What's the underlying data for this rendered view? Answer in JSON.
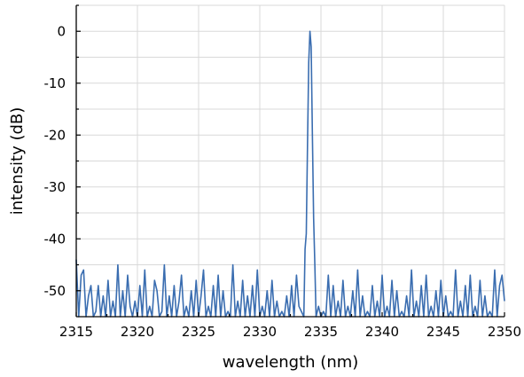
{
  "chart_data": {
    "type": "line",
    "title": "",
    "xlabel": "wavelength (nm)",
    "ylabel": "intensity (dB)",
    "xlim": [
      2315,
      2350
    ],
    "ylim": [
      -55,
      5
    ],
    "x_ticks": [
      2315,
      2320,
      2325,
      2330,
      2335,
      2340,
      2345,
      2350
    ],
    "x_tick_labels": [
      "2315",
      "2320",
      "2325",
      "2330",
      "2335",
      "2340",
      "2345",
      "2350"
    ],
    "y_ticks": [
      0,
      -10,
      -20,
      -30,
      -40,
      -50
    ],
    "y_tick_labels": [
      "0",
      "-10",
      "-20",
      "-30",
      "-40",
      "-50"
    ],
    "grid": true,
    "legend": "none",
    "line_color": "#3a6db0",
    "series": [
      {
        "x": [
          2315.0,
          2315.2,
          2315.4,
          2315.6,
          2315.8,
          2316.0,
          2316.2,
          2316.4,
          2316.6,
          2316.8,
          2317.0,
          2317.2,
          2317.4,
          2317.6,
          2317.8,
          2318.0,
          2318.2,
          2318.4,
          2318.6,
          2318.8,
          2319.0,
          2319.2,
          2319.4,
          2319.6,
          2319.8,
          2320.0,
          2320.2,
          2320.4,
          2320.6,
          2320.8,
          2321.0,
          2321.2,
          2321.4,
          2321.6,
          2321.8,
          2322.0,
          2322.2,
          2322.4,
          2322.6,
          2322.8,
          2323.0,
          2323.2,
          2323.4,
          2323.6,
          2323.8,
          2324.0,
          2324.2,
          2324.4,
          2324.6,
          2324.8,
          2325.0,
          2325.2,
          2325.4,
          2325.6,
          2325.8,
          2326.0,
          2326.2,
          2326.4,
          2326.6,
          2326.8,
          2327.0,
          2327.2,
          2327.4,
          2327.6,
          2327.8,
          2328.0,
          2328.2,
          2328.4,
          2328.6,
          2328.8,
          2329.0,
          2329.2,
          2329.4,
          2329.6,
          2329.8,
          2330.0,
          2330.2,
          2330.4,
          2330.6,
          2330.8,
          2331.0,
          2331.2,
          2331.4,
          2331.6,
          2331.8,
          2332.0,
          2332.2,
          2332.4,
          2332.6,
          2332.8,
          2333.0,
          2333.2,
          2333.4,
          2333.6,
          2333.7,
          2333.8,
          2333.9,
          2334.0,
          2334.1,
          2334.2,
          2334.3,
          2334.4,
          2334.5,
          2334.6,
          2334.8,
          2335.0,
          2335.2,
          2335.4,
          2335.6,
          2335.8,
          2336.0,
          2336.2,
          2336.4,
          2336.6,
          2336.8,
          2337.0,
          2337.2,
          2337.4,
          2337.6,
          2337.8,
          2338.0,
          2338.2,
          2338.4,
          2338.6,
          2338.8,
          2339.0,
          2339.2,
          2339.4,
          2339.6,
          2339.8,
          2340.0,
          2340.2,
          2340.4,
          2340.6,
          2340.8,
          2341.0,
          2341.2,
          2341.4,
          2341.6,
          2341.8,
          2342.0,
          2342.2,
          2342.4,
          2342.6,
          2342.8,
          2343.0,
          2343.2,
          2343.4,
          2343.6,
          2343.8,
          2344.0,
          2344.2,
          2344.4,
          2344.6,
          2344.8,
          2345.0,
          2345.2,
          2345.4,
          2345.6,
          2345.8,
          2346.0,
          2346.2,
          2346.4,
          2346.6,
          2346.8,
          2347.0,
          2347.2,
          2347.4,
          2347.6,
          2347.8,
          2348.0,
          2348.2,
          2348.4,
          2348.6,
          2348.8,
          2349.0,
          2349.2,
          2349.4,
          2349.6,
          2349.8,
          2350.0
        ],
        "y": [
          -44,
          -55,
          -47,
          -46,
          -55,
          -51,
          -49,
          -55,
          -54,
          -49,
          -55,
          -51,
          -55,
          -48,
          -55,
          -52,
          -55,
          -45,
          -55,
          -50,
          -55,
          -47,
          -53,
          -55,
          -52,
          -55,
          -49,
          -55,
          -46,
          -55,
          -53,
          -55,
          -48,
          -50,
          -55,
          -54,
          -45,
          -55,
          -51,
          -55,
          -49,
          -55,
          -52,
          -47,
          -55,
          -53,
          -55,
          -50,
          -55,
          -48,
          -55,
          -51,
          -46,
          -55,
          -53,
          -55,
          -49,
          -55,
          -47,
          -55,
          -50,
          -55,
          -54,
          -55,
          -45,
          -55,
          -52,
          -55,
          -48,
          -55,
          -51,
          -55,
          -49,
          -55,
          -46,
          -55,
          -53,
          -55,
          -50,
          -55,
          -48,
          -55,
          -52,
          -55,
          -54,
          -55,
          -51,
          -55,
          -49,
          -55,
          -47,
          -53,
          -54,
          -55,
          -42,
          -39,
          -22,
          -6,
          0,
          -3,
          -20,
          -36,
          -45,
          -55,
          -53,
          -55,
          -54,
          -55,
          -47,
          -55,
          -49,
          -55,
          -52,
          -55,
          -48,
          -55,
          -53,
          -55,
          -50,
          -55,
          -46,
          -55,
          -51,
          -55,
          -54,
          -55,
          -49,
          -55,
          -52,
          -55,
          -47,
          -55,
          -53,
          -55,
          -48,
          -55,
          -50,
          -55,
          -54,
          -55,
          -51,
          -55,
          -46,
          -55,
          -52,
          -55,
          -49,
          -55,
          -47,
          -55,
          -53,
          -55,
          -50,
          -55,
          -48,
          -55,
          -51,
          -55,
          -54,
          -55,
          -46,
          -55,
          -52,
          -55,
          -49,
          -55,
          -47,
          -55,
          -53,
          -55,
          -48,
          -55,
          -51,
          -55,
          -54,
          -55,
          -46,
          -55,
          -49,
          -47,
          -52
        ]
      }
    ]
  }
}
